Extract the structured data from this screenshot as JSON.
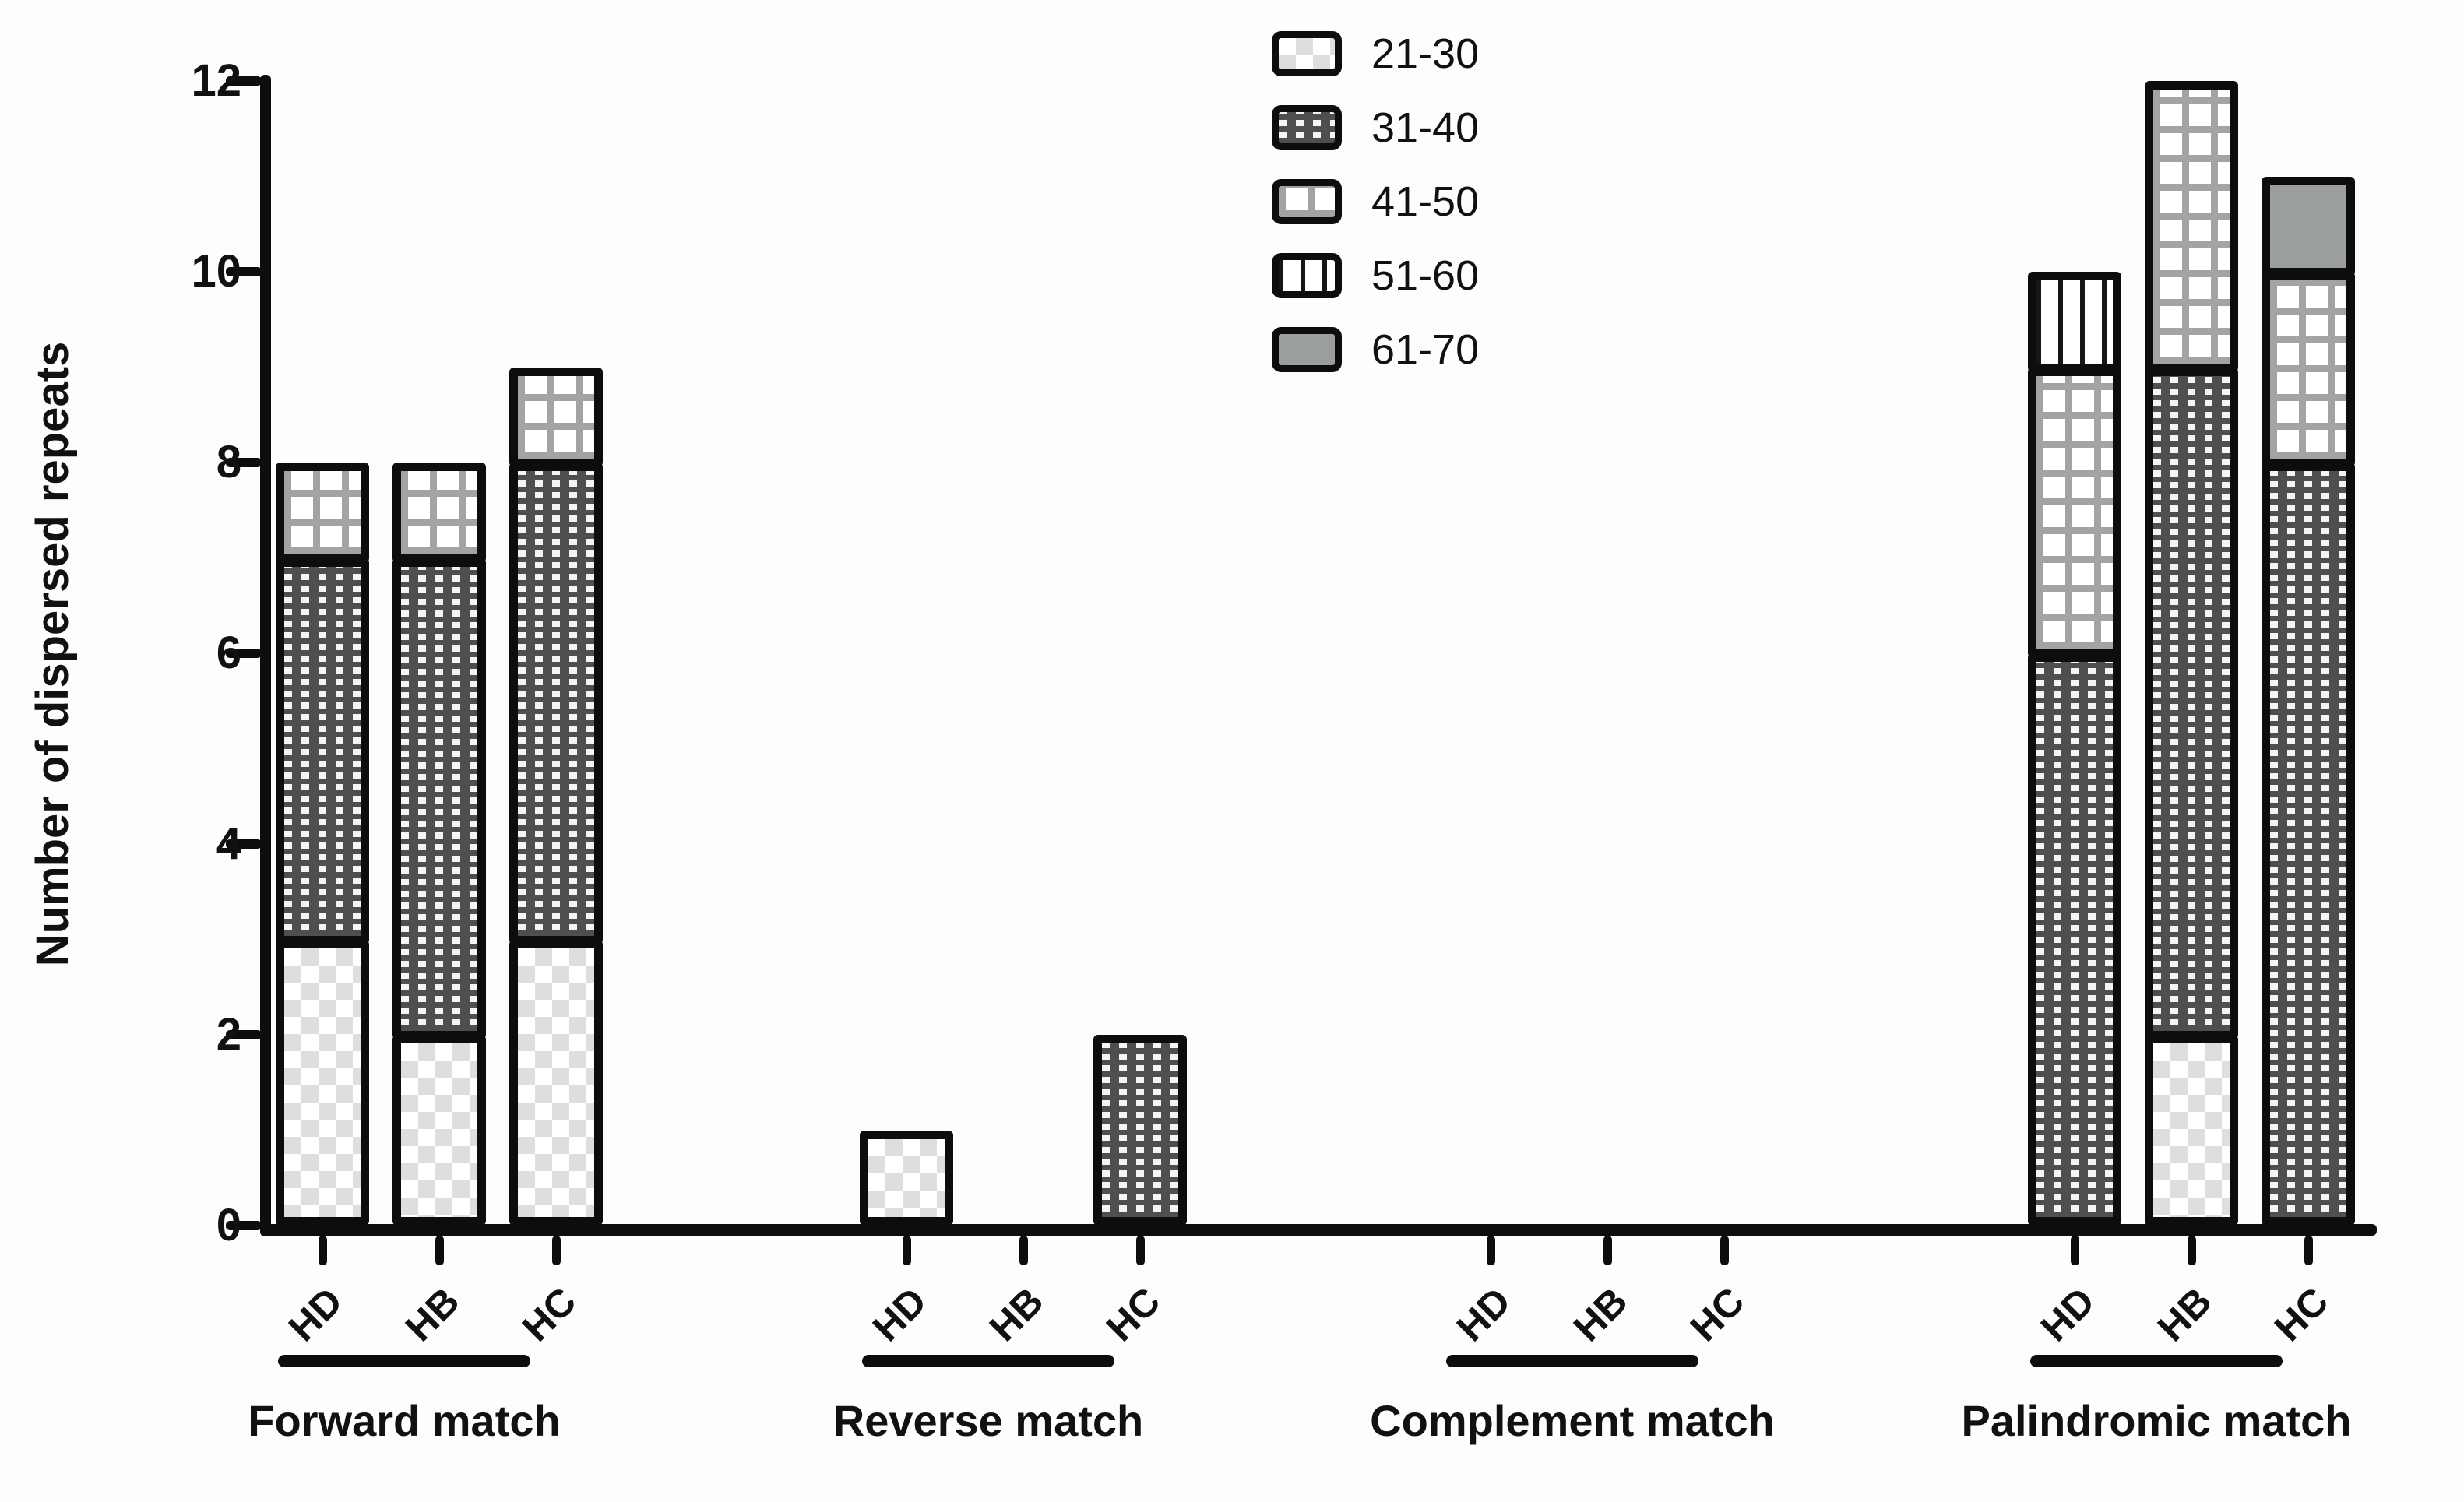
{
  "chart_data": {
    "type": "bar",
    "variant": "grouped-stacked-bar",
    "title": "",
    "xlabel": "",
    "ylabel": "Number of dispersed repeats",
    "ylim": [
      0,
      12
    ],
    "yticks": [
      "0",
      "2",
      "4",
      "6",
      "8",
      "10",
      "12"
    ],
    "grid": "off",
    "legend_position": "top-center",
    "legend": [
      {
        "label": "21-30",
        "pattern": "checker-light",
        "icon": "checker-swatch-icon"
      },
      {
        "label": "31-40",
        "pattern": "dark-dash",
        "icon": "dark-dash-swatch-icon"
      },
      {
        "label": "41-50",
        "pattern": "grid",
        "icon": "grid-swatch-icon"
      },
      {
        "label": "51-60",
        "pattern": "vstripe",
        "icon": "vstripe-swatch-icon"
      },
      {
        "label": "61-70",
        "pattern": "solid-gray",
        "icon": "gray-swatch-icon"
      }
    ],
    "stack_order_bottom_to_top": [
      "21-30",
      "31-40",
      "41-50",
      "51-60",
      "61-70"
    ],
    "groups": [
      {
        "label": "Forward match",
        "bars": [
          {
            "label": "HD",
            "total": 8,
            "segments": {
              "21-30": 3,
              "31-40": 4,
              "41-50": 1,
              "51-60": 0,
              "61-70": 0
            }
          },
          {
            "label": "HB",
            "total": 8,
            "segments": {
              "21-30": 2,
              "31-40": 5,
              "41-50": 1,
              "51-60": 0,
              "61-70": 0
            }
          },
          {
            "label": "HC",
            "total": 9,
            "segments": {
              "21-30": 3,
              "31-40": 5,
              "41-50": 1,
              "51-60": 0,
              "61-70": 0
            }
          }
        ]
      },
      {
        "label": "Reverse match",
        "bars": [
          {
            "label": "HD",
            "total": 1,
            "segments": {
              "21-30": 1,
              "31-40": 0,
              "41-50": 0,
              "51-60": 0,
              "61-70": 0
            }
          },
          {
            "label": "HB",
            "total": 0,
            "segments": {
              "21-30": 0,
              "31-40": 0,
              "41-50": 0,
              "51-60": 0,
              "61-70": 0
            }
          },
          {
            "label": "HC",
            "total": 2,
            "segments": {
              "21-30": 0,
              "31-40": 2,
              "41-50": 0,
              "51-60": 0,
              "61-70": 0
            }
          }
        ]
      },
      {
        "label": "Complement match",
        "bars": [
          {
            "label": "HD",
            "total": 0,
            "segments": {
              "21-30": 0,
              "31-40": 0,
              "41-50": 0,
              "51-60": 0,
              "61-70": 0
            }
          },
          {
            "label": "HB",
            "total": 0,
            "segments": {
              "21-30": 0,
              "31-40": 0,
              "41-50": 0,
              "51-60": 0,
              "61-70": 0
            }
          },
          {
            "label": "HC",
            "total": 0,
            "segments": {
              "21-30": 0,
              "31-40": 0,
              "41-50": 0,
              "51-60": 0,
              "61-70": 0
            }
          }
        ]
      },
      {
        "label": "Palindromic match",
        "bars": [
          {
            "label": "HD",
            "total": 10,
            "segments": {
              "21-30": 0,
              "31-40": 6,
              "41-50": 3,
              "51-60": 1,
              "61-70": 0
            }
          },
          {
            "label": "HB",
            "total": 12,
            "segments": {
              "21-30": 2,
              "31-40": 7,
              "41-50": 3,
              "51-60": 0,
              "61-70": 0
            }
          },
          {
            "label": "HC",
            "total": 11,
            "segments": {
              "21-30": 0,
              "31-40": 8,
              "41-50": 2,
              "51-60": 0,
              "61-70": 1
            }
          }
        ]
      }
    ],
    "colors": {
      "outline": "#0d0d0d",
      "axis": "#0d0d0d",
      "checker_gray": "#dedede",
      "dark_fill": "#4f4f4f",
      "grid_line_gray": "#a3a3a3",
      "stripe_black": "#161616",
      "solid_gray": "#9a9e9d",
      "background": "#fffdfc"
    }
  }
}
